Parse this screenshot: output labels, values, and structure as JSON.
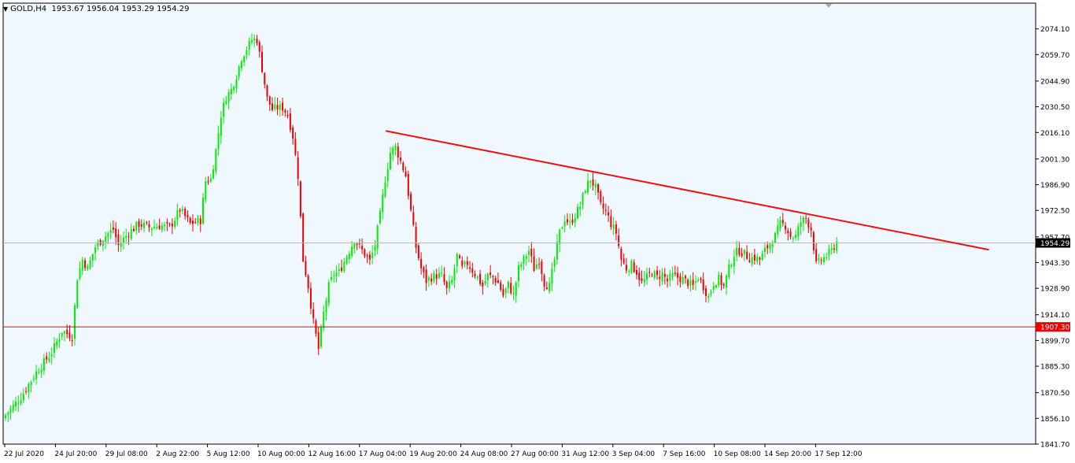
{
  "header": {
    "symbol": "GOLD,H4",
    "open": "1953.67",
    "high": "1956.04",
    "low": "1953.29",
    "close": "1954.29"
  },
  "colors": {
    "background": "#f0f8ff",
    "bull": "#00ee00",
    "bear": "#ee0000",
    "trendline": "#ee1111",
    "support_line": "#ee0000",
    "price_line": "#bbbbbb"
  },
  "chart_data": {
    "type": "candlestick",
    "ylim": [
      1841.7,
      2088.5
    ],
    "y_ticks": [
      "2074.10",
      "2059.70",
      "2044.90",
      "2030.50",
      "2016.10",
      "2001.30",
      "1986.90",
      "1972.50",
      "1957.70",
      "1943.30",
      "1928.90",
      "1914.10",
      "1899.70",
      "1885.30",
      "1870.50",
      "1856.10",
      "1841.70"
    ],
    "x_ticks": [
      "22 Jul 2020",
      "24 Jul 20:00",
      "29 Jul 08:00",
      "2 Aug 22:00",
      "5 Aug 12:00",
      "10 Aug 00:00",
      "12 Aug 16:00",
      "17 Aug 04:00",
      "19 Aug 20:00",
      "24 Aug 08:00",
      "27 Aug 00:00",
      "31 Aug 12:00",
      "3 Sep 04:00",
      "7 Sep 16:00",
      "10 Sep 08:00",
      "14 Sep 20:00",
      "17 Sep 12:00"
    ],
    "current_price": {
      "label": "1954.29",
      "value": 1954.29
    },
    "support_level": {
      "label": "1907.30",
      "value": 1907.3
    },
    "trendline": {
      "start": {
        "bar_index": 120,
        "price": 2017.0
      },
      "end": {
        "bar_index": 310,
        "price": 1950.5
      }
    },
    "grid": false,
    "close_path": [
      [
        0,
        1858
      ],
      [
        6,
        1868
      ],
      [
        12,
        1882
      ],
      [
        18,
        1893
      ],
      [
        22,
        1905
      ],
      [
        26,
        1902
      ],
      [
        28,
        1935
      ],
      [
        30,
        1945
      ],
      [
        32,
        1940
      ],
      [
        35,
        1952
      ],
      [
        38,
        1957
      ],
      [
        42,
        1962
      ],
      [
        44,
        1953
      ],
      [
        48,
        1960
      ],
      [
        52,
        1965
      ],
      [
        56,
        1963
      ],
      [
        60,
        1964
      ],
      [
        64,
        1963
      ],
      [
        68,
        1973
      ],
      [
        72,
        1965
      ],
      [
        76,
        1967
      ],
      [
        78,
        1989
      ],
      [
        80,
        1990
      ],
      [
        82,
        2006
      ],
      [
        84,
        2026
      ],
      [
        86,
        2036
      ],
      [
        88,
        2040
      ],
      [
        90,
        2048
      ],
      [
        92,
        2058
      ],
      [
        94,
        2063
      ],
      [
        96,
        2068
      ],
      [
        98,
        2068
      ],
      [
        100,
        2052
      ],
      [
        102,
        2035
      ],
      [
        104,
        2029
      ],
      [
        106,
        2030
      ],
      [
        108,
        2030
      ],
      [
        110,
        2026
      ],
      [
        112,
        2014
      ],
      [
        114,
        1992
      ],
      [
        116,
        1945
      ],
      [
        118,
        1930
      ],
      [
        120,
        1910
      ],
      [
        122,
        1895
      ],
      [
        124,
        1915
      ],
      [
        126,
        1930
      ],
      [
        128,
        1937
      ],
      [
        130,
        1938
      ],
      [
        132,
        1944
      ],
      [
        134,
        1950
      ],
      [
        136,
        1956
      ],
      [
        138,
        1952
      ],
      [
        140,
        1948
      ],
      [
        142,
        1944
      ],
      [
        144,
        1953
      ],
      [
        146,
        1970
      ],
      [
        148,
        1990
      ],
      [
        150,
        2005
      ],
      [
        152,
        2008
      ],
      [
        154,
        2000
      ],
      [
        156,
        1992
      ],
      [
        158,
        1972
      ],
      [
        160,
        1952
      ],
      [
        162,
        1940
      ],
      [
        164,
        1933
      ],
      [
        166,
        1935
      ],
      [
        168,
        1936
      ],
      [
        170,
        1936
      ],
      [
        172,
        1928
      ],
      [
        174,
        1933
      ],
      [
        176,
        1947
      ],
      [
        178,
        1940
      ],
      [
        180,
        1943
      ],
      [
        182,
        1939
      ],
      [
        184,
        1935
      ],
      [
        186,
        1930
      ],
      [
        188,
        1936
      ],
      [
        190,
        1935
      ],
      [
        192,
        1932
      ],
      [
        194,
        1925
      ],
      [
        196,
        1931
      ],
      [
        198,
        1925
      ],
      [
        200,
        1940
      ],
      [
        202,
        1945
      ],
      [
        204,
        1950
      ],
      [
        206,
        1940
      ],
      [
        208,
        1945
      ],
      [
        210,
        1932
      ],
      [
        212,
        1930
      ],
      [
        214,
        1945
      ],
      [
        216,
        1960
      ],
      [
        218,
        1968
      ],
      [
        220,
        1965
      ],
      [
        222,
        1970
      ],
      [
        224,
        1975
      ],
      [
        226,
        1985
      ],
      [
        228,
        1990
      ],
      [
        230,
        1985
      ],
      [
        232,
        1975
      ],
      [
        234,
        1972
      ],
      [
        236,
        1965
      ],
      [
        238,
        1960
      ],
      [
        240,
        1945
      ],
      [
        242,
        1940
      ],
      [
        244,
        1942
      ],
      [
        246,
        1938
      ],
      [
        248,
        1932
      ],
      [
        250,
        1935
      ],
      [
        252,
        1938
      ],
      [
        254,
        1935
      ],
      [
        256,
        1937
      ],
      [
        258,
        1933
      ],
      [
        260,
        1936
      ],
      [
        262,
        1935
      ],
      [
        264,
        1934
      ],
      [
        266,
        1932
      ],
      [
        268,
        1930
      ],
      [
        270,
        1935
      ],
      [
        272,
        1930
      ],
      [
        274,
        1924
      ],
      [
        276,
        1932
      ],
      [
        278,
        1934
      ],
      [
        280,
        1930
      ],
      [
        282,
        1940
      ],
      [
        284,
        1948
      ],
      [
        286,
        1950
      ],
      [
        288,
        1948
      ],
      [
        290,
        1946
      ],
      [
        292,
        1946
      ],
      [
        294,
        1945
      ],
      [
        296,
        1950
      ],
      [
        298,
        1954
      ],
      [
        300,
        1958
      ],
      [
        302,
        1965
      ],
      [
        304,
        1964
      ],
      [
        306,
        1958
      ],
      [
        308,
        1958
      ],
      [
        310,
        1966
      ],
      [
        312,
        1968
      ],
      [
        314,
        1962
      ],
      [
        316,
        1942
      ],
      [
        318,
        1945
      ],
      [
        320,
        1947
      ],
      [
        322,
        1950
      ],
      [
        324,
        1955
      ]
    ]
  }
}
